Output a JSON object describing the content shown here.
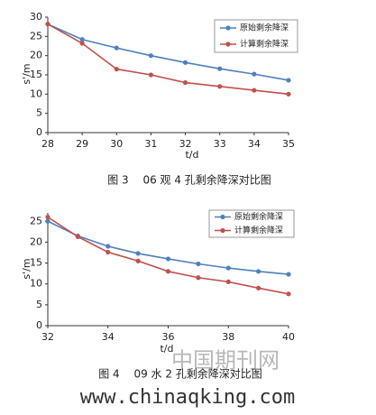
{
  "chart_data": [
    {
      "type": "line",
      "xlabel": "t/d",
      "ylabel": "s'/m",
      "caption": "图 3　 06 观 4 孔剩余降深对比图",
      "x": [
        28,
        29,
        30,
        31,
        32,
        33,
        34,
        35
      ],
      "xlim": [
        28,
        35
      ],
      "xticks": [
        28,
        29,
        30,
        31,
        32,
        33,
        34,
        35
      ],
      "ylim": [
        0,
        30
      ],
      "yticks": [
        0,
        5,
        10,
        15,
        20,
        25,
        30
      ],
      "series": [
        {
          "name": "原始剩余降深",
          "color": "#4e81bd",
          "values": [
            28.2,
            24.2,
            22,
            20,
            18.2,
            16.6,
            15.2,
            13.6
          ]
        },
        {
          "name": "计算剩余降深",
          "color": "#c0504d",
          "values": [
            28.2,
            23.2,
            16.5,
            15,
            13,
            12,
            11,
            10
          ]
        }
      ]
    },
    {
      "type": "line",
      "xlabel": "t/d",
      "ylabel": "s'/m",
      "caption": "图 4　 09 水 2 孔剩余降深对比图",
      "x": [
        32,
        33,
        34,
        35,
        36,
        37,
        38,
        39,
        40
      ],
      "xlim": [
        32,
        40
      ],
      "xticks": [
        32,
        34,
        36,
        38,
        40
      ],
      "ylim": [
        0,
        27
      ],
      "yticks": [
        0,
        5,
        10,
        15,
        20,
        25
      ],
      "series": [
        {
          "name": "原始剩余降深",
          "color": "#4e81bd",
          "values": [
            25,
            21.5,
            19,
            17.3,
            16,
            14.8,
            13.8,
            13,
            12.3
          ]
        },
        {
          "name": "计算剩余降深",
          "color": "#c0504d",
          "values": [
            26,
            21.3,
            17.6,
            15.5,
            13,
            11.5,
            10.5,
            9,
            7.6
          ]
        }
      ]
    }
  ],
  "watermark": {
    "brand": "中国期刊网",
    "url": "www.chinaqking.com"
  }
}
